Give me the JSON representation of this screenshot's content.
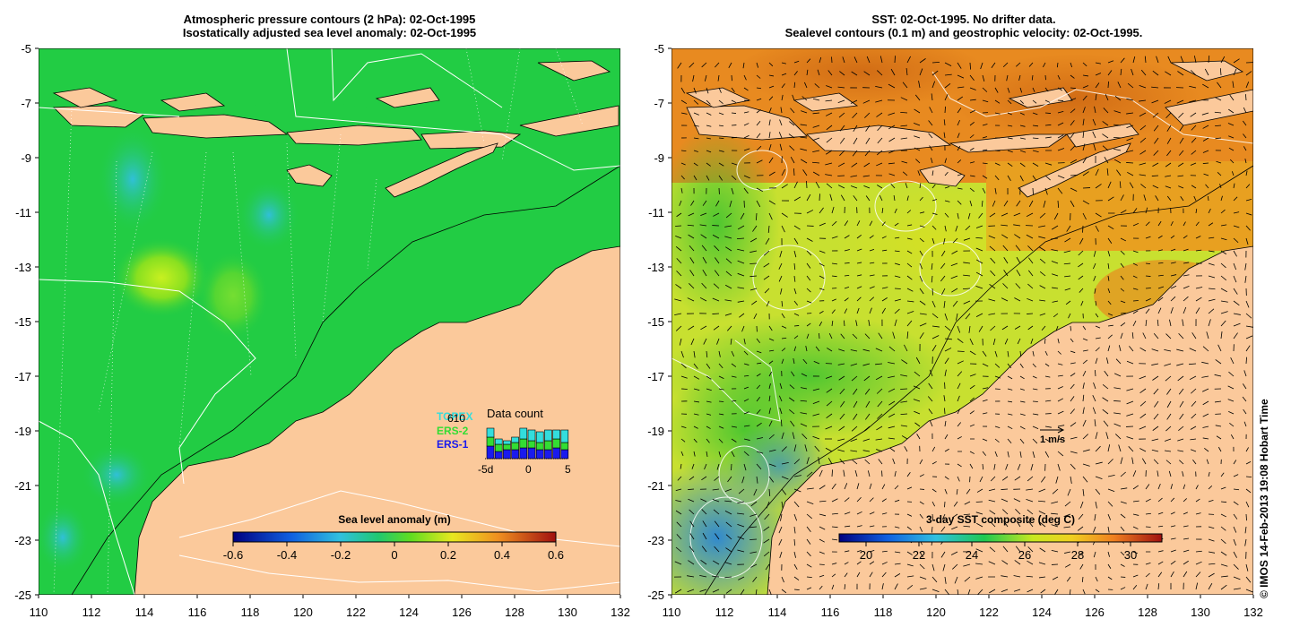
{
  "left_panel": {
    "title_line1": "Atmospheric pressure contours (2 hPa): 02-Oct-1995",
    "title_line2": "Isostatically adjusted sea level anomaly: 02-Oct-1995",
    "colorbar": {
      "label": "Sea level anomaly (m)",
      "ticks": [
        "-0.6",
        "-0.4",
        "-0.2",
        "0",
        "0.2",
        "0.4",
        "0.6"
      ]
    },
    "data_count": {
      "title": "Data count",
      "count": "610",
      "legend": [
        {
          "name": "TOPEX",
          "color": "#33dddd"
        },
        {
          "name": "ERS-2",
          "color": "#33dd33"
        },
        {
          "name": "ERS-1",
          "color": "#1a1aee"
        }
      ],
      "axis_labels": [
        "-5d",
        "0",
        "5"
      ]
    }
  },
  "right_panel": {
    "title_line1": "SST: 02-Oct-1995. No drifter data.",
    "title_line2": "Sealevel contours (0.1 m) and geostrophic velocity: 02-Oct-1995.",
    "colorbar": {
      "label": "3-day SST composite (deg C)",
      "ticks": [
        "20",
        "22",
        "24",
        "26",
        "28",
        "30"
      ]
    },
    "velocity_scale_label": "1 m/s"
  },
  "axes": {
    "x_ticks": [
      "110",
      "112",
      "114",
      "116",
      "118",
      "120",
      "122",
      "124",
      "126",
      "128",
      "130",
      "132"
    ],
    "y_ticks": [
      "-5",
      "-7",
      "-9",
      "-11",
      "-13",
      "-15",
      "-17",
      "-19",
      "-21",
      "-23",
      "-25"
    ],
    "lon_range": [
      110,
      132
    ],
    "lat_range": [
      -25,
      -5
    ]
  },
  "credit": "© IMOS 14-Feb-2013 19:08 Hobart Time",
  "colors": {
    "land": "#fbc99b",
    "ocean_sla": "#22cc44",
    "sla_high": "#99ee22",
    "sla_low": "#33ccaa",
    "sst_warm": "#e06a18",
    "sst_mid": "#aadd22",
    "sst_cool": "#22aadd"
  }
}
